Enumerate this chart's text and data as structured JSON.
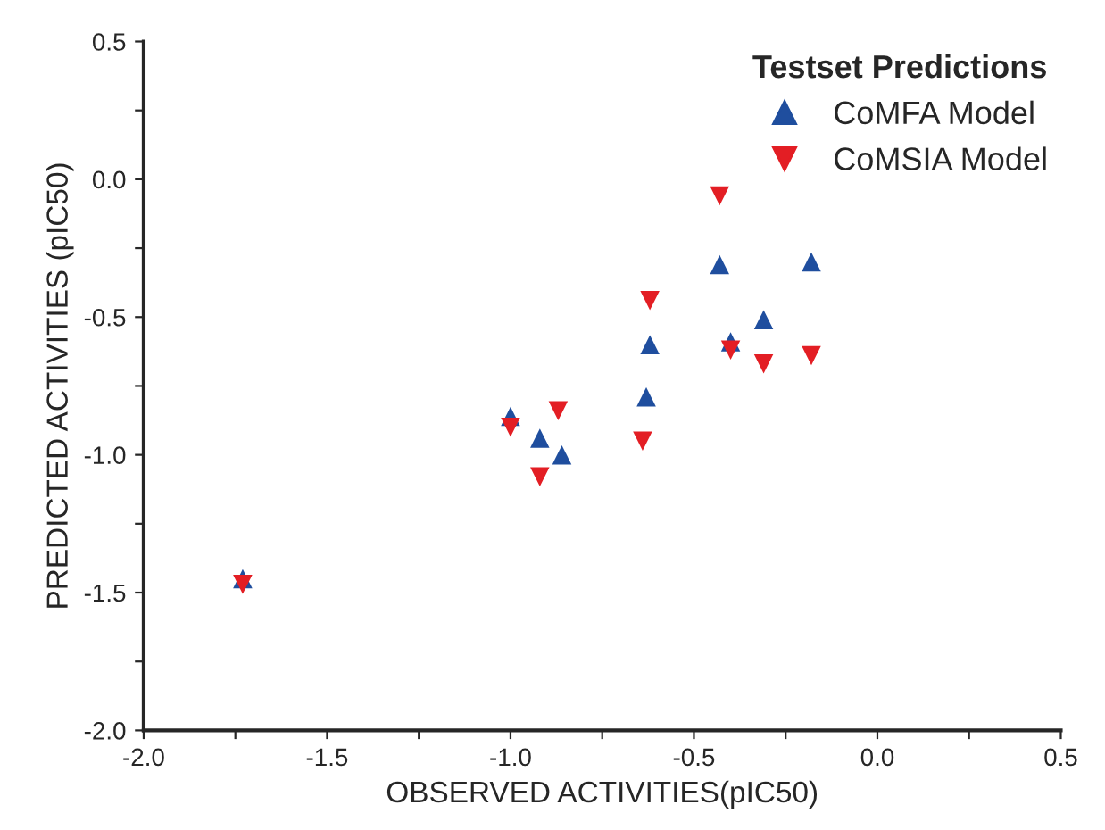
{
  "chart_data": {
    "type": "scatter",
    "xlabel": "OBSERVED ACTIVITIES(pIC50)",
    "ylabel": "PREDICTED ACTIVITIES (pIC50)",
    "legend_title": "Testset Predictions",
    "legend": "top right",
    "grid": false,
    "xlim": [
      -2.0,
      0.5
    ],
    "ylim": [
      -2.0,
      0.5
    ],
    "xticks": [
      {
        "value": -2.0,
        "label": "-2.0"
      },
      {
        "value": -1.75,
        "label": null
      },
      {
        "value": -1.5,
        "label": "-1.5"
      },
      {
        "value": -1.25,
        "label": null
      },
      {
        "value": -1.0,
        "label": "-1.0"
      },
      {
        "value": -0.75,
        "label": null
      },
      {
        "value": -0.5,
        "label": "-0.5"
      },
      {
        "value": -0.25,
        "label": null
      },
      {
        "value": 0.0,
        "label": "0.0"
      },
      {
        "value": 0.25,
        "label": null
      },
      {
        "value": 0.5,
        "label": "0.5"
      }
    ],
    "yticks": [
      {
        "value": -2.0,
        "label": "-2.0"
      },
      {
        "value": -1.75,
        "label": null
      },
      {
        "value": -1.5,
        "label": "-1.5"
      },
      {
        "value": -1.25,
        "label": null
      },
      {
        "value": -1.0,
        "label": "-1.0"
      },
      {
        "value": -0.75,
        "label": null
      },
      {
        "value": -0.5,
        "label": "-0.5"
      },
      {
        "value": -0.25,
        "label": null
      },
      {
        "value": 0.0,
        "label": "0.0"
      },
      {
        "value": 0.25,
        "label": null
      },
      {
        "value": 0.5,
        "label": "0.5"
      }
    ],
    "series": [
      {
        "name": "CoMFA Model",
        "color": "#1f4e9e",
        "marker": "triangle",
        "x": [
          -1.0,
          -0.92,
          -0.86,
          -1.73,
          -0.63,
          -0.62,
          -0.43,
          -0.4,
          -0.31,
          -0.18
        ],
        "values": [
          -0.86,
          -0.94,
          -1.0,
          -1.45,
          -0.79,
          -0.6,
          -0.31,
          -0.59,
          -0.51,
          -0.3
        ]
      },
      {
        "name": "CoMSIA Model",
        "color": "#e31e24",
        "marker": "triangle_down",
        "x": [
          -1.0,
          -0.92,
          -0.87,
          -1.73,
          -0.64,
          -0.62,
          -0.43,
          -0.4,
          -0.31,
          -0.18
        ],
        "values": [
          -0.9,
          -1.08,
          -0.84,
          -1.47,
          -0.95,
          -0.44,
          -0.06,
          -0.62,
          -0.67,
          -0.64
        ]
      }
    ]
  }
}
